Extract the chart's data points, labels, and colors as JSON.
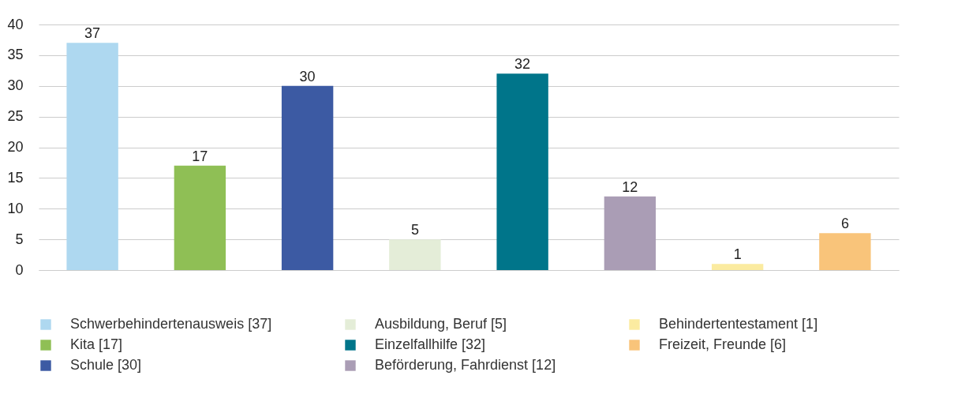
{
  "chart_data": {
    "type": "bar",
    "categories": [
      null,
      null,
      null,
      null,
      null,
      null,
      null,
      null
    ],
    "series": [
      {
        "name": "Schwerbehindertenausweis [37]",
        "color": "#aed8f0",
        "values": [
          37,
          null,
          null,
          null,
          null,
          null,
          null,
          null
        ]
      },
      {
        "name": "Kita [17]",
        "color": "#8fbf55",
        "values": [
          null,
          17,
          null,
          null,
          null,
          null,
          null,
          null
        ]
      },
      {
        "name": "Schule [30]",
        "color": "#3c5aa3",
        "values": [
          null,
          null,
          30,
          null,
          null,
          null,
          null,
          null
        ]
      },
      {
        "name": "Ausbildung, Beruf [5]",
        "color": "#e4edd8",
        "values": [
          null,
          null,
          null,
          5,
          null,
          null,
          null,
          null
        ]
      },
      {
        "name": "Einzelfallhilfe [32]",
        "color": "#00758a",
        "values": [
          null,
          null,
          null,
          null,
          32,
          null,
          null,
          null
        ]
      },
      {
        "name": "Beförderung, Fahrdienst [12]",
        "color": "#aa9db5",
        "values": [
          null,
          null,
          null,
          null,
          null,
          12,
          null,
          null
        ]
      },
      {
        "name": "Behindertentestament [1]",
        "color": "#fbeba0",
        "values": [
          null,
          null,
          null,
          null,
          null,
          null,
          1,
          null
        ]
      },
      {
        "name": "Freizeit, Freunde [6]",
        "color": "#f9c47a",
        "values": [
          null,
          null,
          null,
          null,
          null,
          null,
          null,
          6
        ]
      }
    ],
    "ylim": [
      0,
      40
    ],
    "yticks": [
      0,
      5,
      10,
      15,
      20,
      25,
      30,
      35,
      40
    ],
    "grid": "y",
    "data_labels": true,
    "legend": "bottom",
    "tick_labels": "y"
  }
}
